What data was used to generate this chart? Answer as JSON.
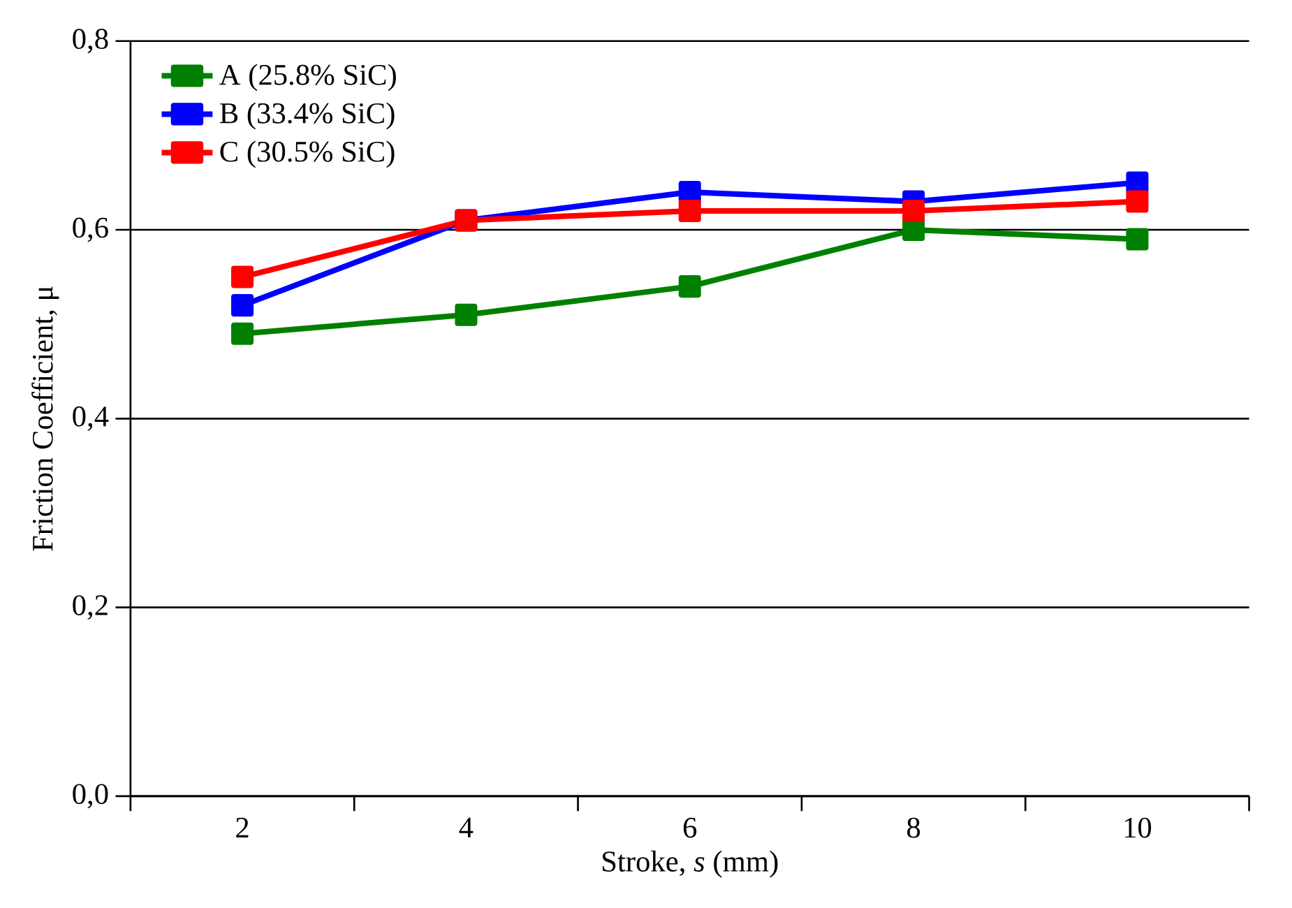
{
  "chart_data": {
    "type": "line",
    "xlabel": "Stroke, *s* (mm)",
    "ylabel": "Friction Coefficient, μ",
    "categories": [
      "2",
      "4",
      "6",
      "8",
      "10"
    ],
    "series": [
      {
        "name": "A (25.8% SiC)",
        "color": "#008000",
        "values": [
          0.49,
          0.51,
          0.54,
          0.6,
          0.59
        ]
      },
      {
        "name": "B (33.4% SiC)",
        "color": "#0000ff",
        "values": [
          0.52,
          0.61,
          0.64,
          0.63,
          0.65
        ]
      },
      {
        "name": "C (30.5% SiC)",
        "color": "#ff0000",
        "values": [
          0.55,
          0.61,
          0.62,
          0.62,
          0.63
        ]
      }
    ],
    "ylim": [
      0,
      0.8
    ],
    "yticks": [
      {
        "value": 0,
        "label": "0,0"
      },
      {
        "value": 0.2,
        "label": "0,2"
      },
      {
        "value": 0.4,
        "label": "0,4"
      },
      {
        "value": 0.6,
        "label": "0,6"
      },
      {
        "value": 0.8,
        "label": "0,8"
      }
    ],
    "grid": "y",
    "legend": "top left",
    "marker": "square",
    "line_style": "solid"
  }
}
